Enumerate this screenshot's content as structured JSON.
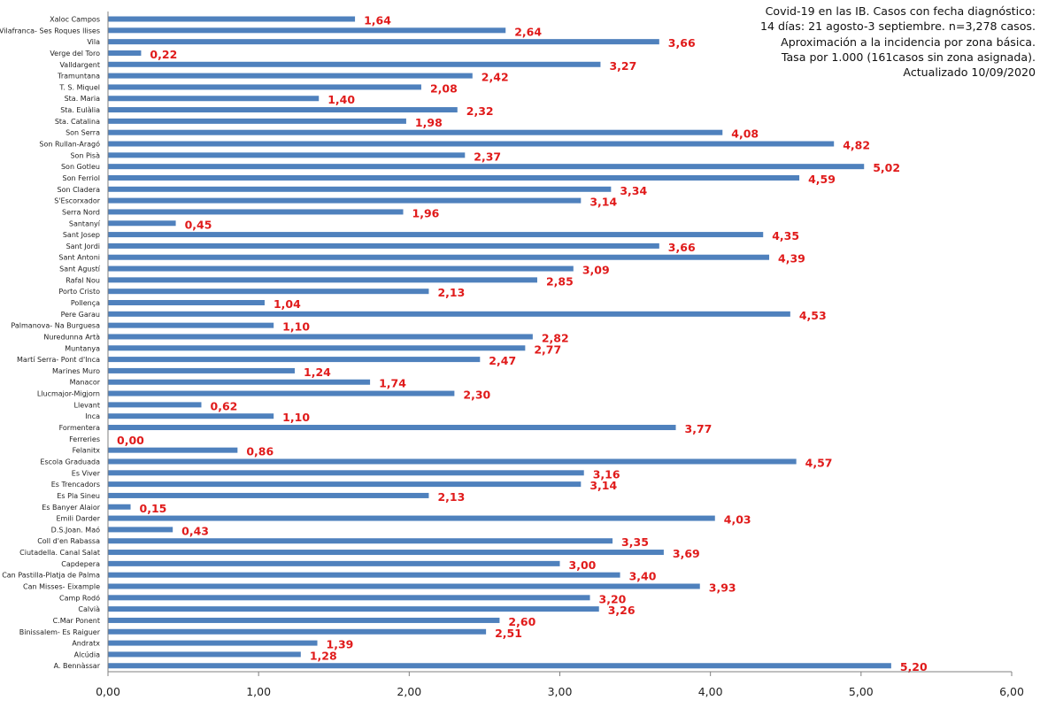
{
  "chart_data": {
    "type": "bar",
    "orientation": "horizontal",
    "title_lines": [
      "Covid-19 en las IB. Casos con  fecha diagnóstico:",
      "14 días: 21 agosto-3 septiembre. n=3,278 casos.",
      "Aproximación a la incidencia por zona básica.",
      "Tasa por 1.000 (161casos sin zona asignada).",
      "Actualizado 10/09/2020"
    ],
    "xlabel": "",
    "ylabel": "",
    "xlim": [
      0,
      6
    ],
    "x_ticks": [
      "0,00",
      "1,00",
      "2,00",
      "3,00",
      "4,00",
      "5,00",
      "6,00"
    ],
    "grid": false,
    "legend": "none",
    "bar_color": "#4f81bd",
    "label_color": "#e01b1b",
    "categories": [
      "Xaloc Campos",
      "Vilafranca- Ses Roques llises",
      "Vila",
      "Verge del Toro",
      "Valldargent",
      "Tramuntana",
      "T. S. Miquel",
      "Sta. Maria",
      "Sta. Eulàlia",
      "Sta. Catalina",
      "Son Serra",
      "Son Rullan-Aragó",
      "Son Pisà",
      "Son Gotleu",
      "Son Ferriol",
      "Son Cladera",
      "S'Escorxador",
      "Serra Nord",
      "Santanyí",
      "Sant Josep",
      "Sant Jordi",
      "Sant Antoni",
      "Sant Agustí",
      "Rafal Nou",
      "Porto Cristo",
      "Pollença",
      "Pere Garau",
      "Palmanova- Na Burguesa",
      "Nuredunna Artà",
      "Muntanya",
      "Martí Serra- Pont d'Inca",
      "Marines Muro",
      "Manacor",
      "Llucmajor-Migjorn",
      "Llevant",
      "Inca",
      "Formentera",
      "Ferreries",
      "Felanitx",
      "Escola Graduada",
      "Es Viver",
      "Es Trencadors",
      "Es Pla Sineu",
      "Es Banyer Alaior",
      "Emili Darder",
      "D.S.Joan. Maó",
      "Coll d'en Rabassa",
      "Ciutadella. Canal Salat",
      "Capdepera",
      "Can Pastilla-Platja de Palma",
      "Can Misses- Eixample",
      "Camp Rodó",
      "Calvià",
      "C.Mar Ponent",
      "Binissalem- Es Raiguer",
      "Andratx",
      "Alcúdia",
      "A. Bennàssar"
    ],
    "values": [
      1.64,
      2.64,
      3.66,
      0.22,
      3.27,
      2.42,
      2.08,
      1.4,
      2.32,
      1.98,
      4.08,
      4.82,
      2.37,
      5.02,
      4.59,
      3.34,
      3.14,
      1.96,
      0.45,
      4.35,
      3.66,
      4.39,
      3.09,
      2.85,
      2.13,
      1.04,
      4.53,
      1.1,
      2.82,
      2.77,
      2.47,
      1.24,
      1.74,
      2.3,
      0.62,
      1.1,
      3.77,
      0.0,
      0.86,
      4.57,
      3.16,
      3.14,
      2.13,
      0.15,
      4.03,
      0.43,
      3.35,
      3.69,
      3.0,
      3.4,
      3.93,
      3.2,
      3.26,
      2.6,
      2.51,
      1.39,
      1.28,
      5.2
    ],
    "value_labels": [
      "1,64",
      "2,64",
      "3,66",
      "0,22",
      "3,27",
      "2,42",
      "2,08",
      "1,40",
      "2,32",
      "1,98",
      "4,08",
      "4,82",
      "2,37",
      "5,02",
      "4,59",
      "3,34",
      "3,14",
      "1,96",
      "0,45",
      "4,35",
      "3,66",
      "4,39",
      "3,09",
      "2,85",
      "2,13",
      "1,04",
      "4,53",
      "1,10",
      "2,82",
      "2,77",
      "2,47",
      "1,24",
      "1,74",
      "2,30",
      "0,62",
      "1,10",
      "3,77",
      "0,00",
      "0,86",
      "4,57",
      "3,16",
      "3,14",
      "2,13",
      "0,15",
      "4,03",
      "0,43",
      "3,35",
      "3,69",
      "3,00",
      "3,40",
      "3,93",
      "3,20",
      "3,26",
      "2,60",
      "2,51",
      "1,39",
      "1,28",
      "5,20"
    ]
  }
}
